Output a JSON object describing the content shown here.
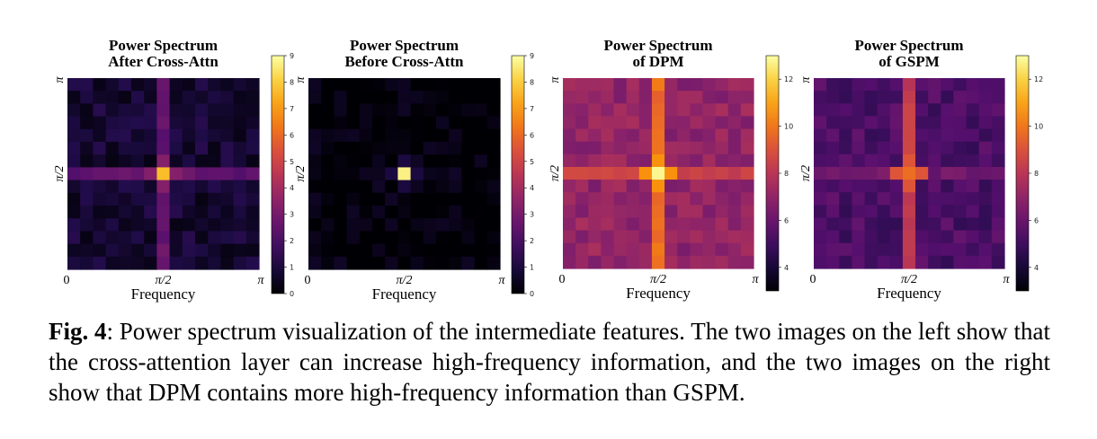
{
  "chart_data": [
    {
      "type": "heatmap",
      "title": "Power Spectrum\nAfter Cross-Attn",
      "xlabel": "Frequency",
      "x_ticks": [
        "0",
        "π/2",
        "π"
      ],
      "y_ticks": [
        "π",
        "π/2"
      ],
      "colormap": "inferno",
      "vmin": 0,
      "vmax": 9,
      "colorbar_ticks": [
        "0",
        "1",
        "2",
        "3",
        "4",
        "5",
        "6",
        "7",
        "8",
        "9"
      ],
      "grid_size": 15,
      "peak_value": 7.7,
      "background_level": 0.8,
      "center_row_level": 2.5,
      "center_col_level": 2.6
    },
    {
      "type": "heatmap",
      "title": "Power Spectrum\nBefore Cross-Attn",
      "xlabel": "Frequency",
      "x_ticks": [
        "0",
        "π/2",
        "π"
      ],
      "y_ticks": [
        "π",
        "π/2"
      ],
      "colormap": "inferno",
      "vmin": 0,
      "vmax": 9,
      "colorbar_ticks": [
        "0",
        "1",
        "2",
        "3",
        "4",
        "5",
        "6",
        "7",
        "8",
        "9"
      ],
      "grid_size": 15,
      "peak_value": 8.7,
      "background_level": 0.05,
      "center_row_level": 0.3,
      "center_col_level": 0.3
    },
    {
      "type": "heatmap",
      "title": "Power Spectrum\nof DPM",
      "xlabel": "Frequency",
      "x_ticks": [
        "0",
        "π/2",
        "π"
      ],
      "y_ticks": [
        "π",
        "π/2"
      ],
      "colormap": "inferno",
      "vmin": 3,
      "vmax": 13,
      "colorbar_ticks": [
        "4",
        "6",
        "8",
        "10",
        "12"
      ],
      "colorbar_tick_values": [
        4,
        6,
        8,
        10,
        12
      ],
      "grid_size": 15,
      "peak_value": 12.8,
      "background_level": 7.0,
      "center_row_level": 8.4,
      "center_col_level": 9.8
    },
    {
      "type": "heatmap",
      "title": "Power Spectrum\nof GSPM",
      "xlabel": "Frequency",
      "x_ticks": [
        "0",
        "π/2",
        "π"
      ],
      "y_ticks": [
        "π",
        "π/2"
      ],
      "colormap": "inferno",
      "vmin": 3,
      "vmax": 13,
      "colorbar_ticks": [
        "4",
        "6",
        "8",
        "10",
        "12"
      ],
      "colorbar_tick_values": [
        4,
        6,
        8,
        10,
        12
      ],
      "grid_size": 15,
      "peak_value": 9.8,
      "background_level": 5.3,
      "center_row_level": 6.2,
      "center_col_level": 8.3
    }
  ],
  "caption": {
    "label": "Fig. 4",
    "text": ": Power spectrum visualization of the intermediate features. The two images on the left show that the cross-attention layer can increase high-frequency information, and the two images on the right show that DPM contains more high-frequency information than GSPM."
  }
}
